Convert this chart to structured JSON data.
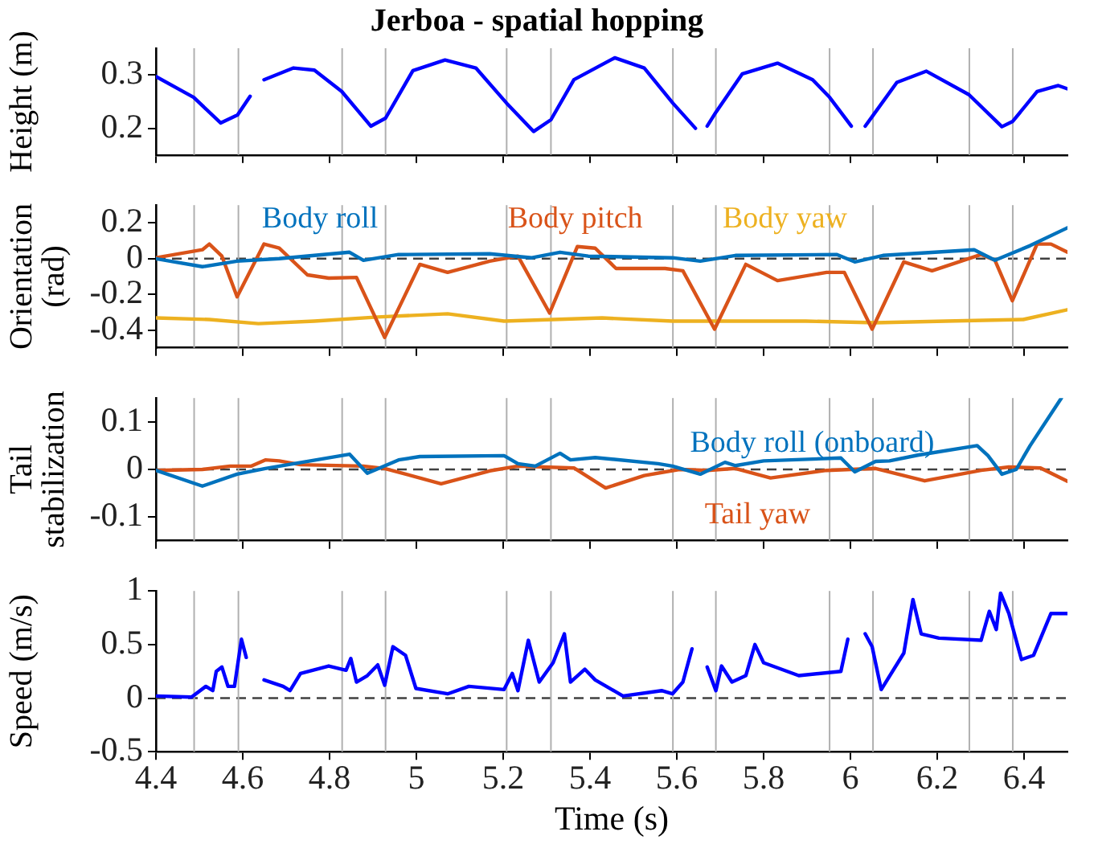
{
  "chart_data": [
    {
      "type": "line",
      "title": "Jerboa - spatial hopping",
      "ylabel": "Height (m)",
      "xlim": [
        4.4,
        6.5
      ],
      "xticks": [
        4.4,
        4.6,
        4.8,
        5,
        5.2,
        5.4,
        5.6,
        5.8,
        6,
        6.2,
        6.4
      ],
      "ylim": [
        0.15,
        0.35
      ],
      "yticks": [
        0.2,
        0.3
      ],
      "tick_labels": "y",
      "grid": false,
      "legend": false,
      "marker": "none",
      "x": [
        4.4,
        4.487,
        4.549,
        4.588,
        4.617,
        4.63,
        4.649,
        4.717,
        4.765,
        4.828,
        4.895,
        4.929,
        4.992,
        5.066,
        5.137,
        5.208,
        5.27,
        5.31,
        5.363,
        5.457,
        5.525,
        5.591,
        5.643,
        5.655,
        5.67,
        5.69,
        5.751,
        5.832,
        5.913,
        5.952,
        6.002,
        6.02,
        6.034,
        6.052,
        6.107,
        6.175,
        6.273,
        6.349,
        6.374,
        6.43,
        6.479,
        6.5
      ],
      "series": [
        {
          "color": "#0000ff",
          "values": [
            0.297,
            0.258,
            0.21,
            0.225,
            0.26,
            null,
            0.291,
            0.313,
            0.309,
            0.269,
            0.204,
            0.219,
            0.308,
            0.328,
            0.313,
            0.247,
            0.194,
            0.216,
            0.291,
            0.332,
            0.313,
            0.247,
            0.2,
            null,
            0.204,
            0.23,
            0.302,
            0.322,
            0.291,
            0.258,
            0.204,
            null,
            0.204,
            0.224,
            0.286,
            0.307,
            0.263,
            0.203,
            0.213,
            0.269,
            0.28,
            0.274
          ]
        }
      ],
      "ref_lines": [
        {
          "axis": "x",
          "value": 4.488,
          "color": "#b0b0b0"
        },
        {
          "axis": "x",
          "value": 4.59,
          "color": "#b0b0b0"
        },
        {
          "axis": "x",
          "value": 4.829,
          "color": "#b0b0b0"
        },
        {
          "axis": "x",
          "value": 4.929,
          "color": "#b0b0b0"
        },
        {
          "axis": "x",
          "value": 5.208,
          "color": "#b0b0b0"
        },
        {
          "axis": "x",
          "value": 5.31,
          "color": "#b0b0b0"
        },
        {
          "axis": "x",
          "value": 5.591,
          "color": "#b0b0b0"
        },
        {
          "axis": "x",
          "value": 5.69,
          "color": "#b0b0b0"
        },
        {
          "axis": "x",
          "value": 5.952,
          "color": "#b0b0b0"
        },
        {
          "axis": "x",
          "value": 6.052,
          "color": "#b0b0b0"
        },
        {
          "axis": "x",
          "value": 6.274,
          "color": "#b0b0b0"
        },
        {
          "axis": "x",
          "value": 6.374,
          "color": "#b0b0b0"
        }
      ]
    },
    {
      "type": "line",
      "ylabel": "Orientation (rad)",
      "xlim": [
        4.4,
        6.5
      ],
      "xticks": [
        4.4,
        4.6,
        4.8,
        5,
        5.2,
        5.4,
        5.6,
        5.8,
        6,
        6.2,
        6.4
      ],
      "ylim": [
        -0.5,
        0.3
      ],
      "yticks": [
        -0.4,
        -0.2,
        0,
        0.2
      ],
      "tick_labels": "y",
      "grid": false,
      "legend": false,
      "marker": "none",
      "series": [
        {
          "name": "Body roll",
          "color": "#0072bd",
          "x": [
            4.4,
            4.507,
            4.587,
            4.684,
            4.846,
            4.878,
            4.959,
            5.169,
            5.266,
            5.331,
            5.396,
            5.59,
            5.654,
            5.735,
            5.969,
            6.01,
            6.075,
            6.285,
            6.333,
            6.414,
            6.5
          ],
          "values": [
            0,
            -0.045,
            -0.014,
            0,
            0.036,
            -0.009,
            0.023,
            0.027,
            0.005,
            0.036,
            0.014,
            0.005,
            -0.014,
            0.018,
            0.023,
            -0.018,
            0.018,
            0.05,
            -0.009,
            0.073,
            0.173
          ]
        },
        {
          "name": "Body pitch",
          "color": "#d95319",
          "x": [
            4.4,
            4.507,
            4.523,
            4.552,
            4.587,
            4.649,
            4.684,
            4.749,
            4.798,
            4.862,
            4.927,
            5.008,
            5.072,
            5.169,
            5.234,
            5.307,
            5.371,
            5.412,
            5.46,
            5.573,
            5.614,
            5.687,
            5.759,
            5.832,
            5.945,
            5.986,
            6.05,
            6.123,
            6.188,
            6.301,
            6.333,
            6.373,
            6.43,
            6.462,
            6.5
          ],
          "values": [
            0.005,
            0.05,
            0.082,
            0.014,
            -0.214,
            0.082,
            0.059,
            -0.091,
            -0.109,
            -0.105,
            -0.441,
            -0.032,
            -0.077,
            -0.014,
            0.014,
            -0.305,
            0.068,
            0.059,
            -0.055,
            -0.055,
            -0.068,
            -0.395,
            -0.032,
            -0.123,
            -0.077,
            -0.077,
            -0.395,
            -0.018,
            -0.068,
            0.023,
            -0.009,
            -0.236,
            0.082,
            0.082,
            0.036
          ]
        },
        {
          "name": "Body yaw",
          "color": "#edb120",
          "x": [
            4.4,
            4.523,
            4.636,
            4.765,
            4.911,
            5.072,
            5.202,
            5.428,
            5.59,
            5.735,
            5.897,
            6.058,
            6.22,
            6.398,
            6.5
          ],
          "values": [
            -0.332,
            -0.341,
            -0.364,
            -0.35,
            -0.327,
            -0.309,
            -0.35,
            -0.332,
            -0.35,
            -0.35,
            -0.35,
            -0.359,
            -0.35,
            -0.341,
            -0.286
          ]
        }
      ],
      "ref_lines": [
        {
          "axis": "y",
          "value": 0,
          "color": "#404040",
          "line_style": "dashed"
        },
        {
          "axis": "x",
          "value": 4.488,
          "color": "#b0b0b0"
        },
        {
          "axis": "x",
          "value": 4.59,
          "color": "#b0b0b0"
        },
        {
          "axis": "x",
          "value": 4.829,
          "color": "#b0b0b0"
        },
        {
          "axis": "x",
          "value": 4.929,
          "color": "#b0b0b0"
        },
        {
          "axis": "x",
          "value": 5.208,
          "color": "#b0b0b0"
        },
        {
          "axis": "x",
          "value": 5.31,
          "color": "#b0b0b0"
        },
        {
          "axis": "x",
          "value": 5.591,
          "color": "#b0b0b0"
        },
        {
          "axis": "x",
          "value": 5.69,
          "color": "#b0b0b0"
        },
        {
          "axis": "x",
          "value": 5.952,
          "color": "#b0b0b0"
        },
        {
          "axis": "x",
          "value": 6.052,
          "color": "#b0b0b0"
        },
        {
          "axis": "x",
          "value": 6.274,
          "color": "#b0b0b0"
        },
        {
          "axis": "x",
          "value": 6.374,
          "color": "#b0b0b0"
        }
      ]
    },
    {
      "type": "line",
      "ylabel": "Tail stabilization",
      "xlim": [
        4.4,
        6.5
      ],
      "xticks": [
        4.4,
        4.6,
        4.8,
        5,
        5.2,
        5.4,
        5.6,
        5.8,
        6,
        6.2,
        6.4
      ],
      "ylim": [
        -0.15,
        0.15
      ],
      "yticks": [
        -0.1,
        0,
        0.1
      ],
      "tick_labels": "y",
      "grid": false,
      "legend": false,
      "marker": "none",
      "series": [
        {
          "name": "Body roll (onboard)",
          "color": "#0072bd",
          "x": [
            4.4,
            4.507,
            4.587,
            4.652,
            4.846,
            4.887,
            4.959,
            5.008,
            5.202,
            5.234,
            5.274,
            5.331,
            5.355,
            5.412,
            5.557,
            5.59,
            5.654,
            5.711,
            5.735,
            5.8,
            5.978,
            6.01,
            6.058,
            6.09,
            6.155,
            6.292,
            6.317,
            6.349,
            6.382,
            6.414,
            6.486
          ],
          "values": [
            -0.002,
            -0.035,
            -0.01,
            0.002,
            0.032,
            -0.008,
            0.02,
            0.027,
            0.029,
            0.012,
            0.007,
            0.034,
            0.02,
            0.025,
            0.012,
            0.007,
            -0.01,
            0.015,
            0.008,
            0.018,
            0.024,
            -0.005,
            0.017,
            0.018,
            0.03,
            0.05,
            0.029,
            -0.01,
            0,
            0.05,
            0.15
          ]
        },
        {
          "name": "Tail yaw",
          "color": "#d95319",
          "x": [
            4.4,
            4.507,
            4.571,
            4.62,
            4.652,
            4.684,
            4.733,
            4.878,
            4.927,
            5.057,
            5.169,
            5.234,
            5.363,
            5.436,
            5.525,
            5.606,
            5.67,
            5.735,
            5.816,
            5.945,
            6.058,
            6.171,
            6.301,
            6.365,
            6.438,
            6.5
          ],
          "values": [
            -0.002,
            0,
            0.007,
            0.007,
            0.02,
            0.018,
            0.01,
            0.007,
            0.002,
            -0.03,
            -0.003,
            0.007,
            0.003,
            -0.039,
            -0.013,
            0,
            -0.002,
            0.002,
            -0.018,
            -0.002,
            0.002,
            -0.024,
            -0.002,
            0.005,
            0.003,
            -0.025
          ]
        }
      ],
      "ref_lines": [
        {
          "axis": "y",
          "value": 0,
          "color": "#404040",
          "line_style": "dashed"
        },
        {
          "axis": "x",
          "value": 4.488,
          "color": "#b0b0b0"
        },
        {
          "axis": "x",
          "value": 4.59,
          "color": "#b0b0b0"
        },
        {
          "axis": "x",
          "value": 4.829,
          "color": "#b0b0b0"
        },
        {
          "axis": "x",
          "value": 4.929,
          "color": "#b0b0b0"
        },
        {
          "axis": "x",
          "value": 5.208,
          "color": "#b0b0b0"
        },
        {
          "axis": "x",
          "value": 5.31,
          "color": "#b0b0b0"
        },
        {
          "axis": "x",
          "value": 5.591,
          "color": "#b0b0b0"
        },
        {
          "axis": "x",
          "value": 5.69,
          "color": "#b0b0b0"
        },
        {
          "axis": "x",
          "value": 5.952,
          "color": "#b0b0b0"
        },
        {
          "axis": "x",
          "value": 6.052,
          "color": "#b0b0b0"
        },
        {
          "axis": "x",
          "value": 6.274,
          "color": "#b0b0b0"
        },
        {
          "axis": "x",
          "value": 6.374,
          "color": "#b0b0b0"
        }
      ]
    },
    {
      "type": "line",
      "xlabel": "Time (s)",
      "ylabel": "Speed (m/s)",
      "xlim": [
        4.4,
        6.5
      ],
      "xticks": [
        4.4,
        4.6,
        4.8,
        5,
        5.2,
        5.4,
        5.6,
        5.8,
        6,
        6.2,
        6.4
      ],
      "ylim": [
        -0.5,
        1
      ],
      "yticks": [
        -0.5,
        0,
        0.5,
        1
      ],
      "grid": false,
      "legend": false,
      "marker": "none",
      "x": [
        4.4,
        4.482,
        4.515,
        4.531,
        4.539,
        4.552,
        4.566,
        4.581,
        4.597,
        4.608,
        4.63,
        4.649,
        4.693,
        4.709,
        4.733,
        4.798,
        4.838,
        4.849,
        4.862,
        4.887,
        4.911,
        4.927,
        4.946,
        4.975,
        4.999,
        5.072,
        5.121,
        5.202,
        5.221,
        5.234,
        5.258,
        5.283,
        5.315,
        5.341,
        5.355,
        5.388,
        5.412,
        5.476,
        5.565,
        5.59,
        5.614,
        5.635,
        5.65,
        5.67,
        5.69,
        5.703,
        5.727,
        5.759,
        5.78,
        5.8,
        5.881,
        5.978,
        5.994,
        6.015,
        6.034,
        6.05,
        6.071,
        6.123,
        6.144,
        6.163,
        6.204,
        6.301,
        6.32,
        6.336,
        6.346,
        6.365,
        6.394,
        6.422,
        6.462,
        6.5
      ],
      "series": [
        {
          "color": "#0000ff",
          "values": [
            0.02,
            0.01,
            0.11,
            0.07,
            0.25,
            0.29,
            0.11,
            0.11,
            0.55,
            0.38,
            null,
            0.17,
            0.11,
            0.07,
            0.23,
            0.3,
            0.26,
            0.37,
            0.15,
            0.21,
            0.31,
            0.12,
            0.48,
            0.4,
            0.09,
            0.04,
            0.11,
            0.08,
            0.23,
            0.07,
            0.54,
            0.15,
            0.33,
            0.6,
            0.15,
            0.27,
            0.17,
            0.02,
            0.07,
            0.04,
            0.15,
            0.46,
            null,
            0.29,
            0.07,
            0.3,
            0.15,
            0.21,
            0.5,
            0.33,
            0.21,
            0.25,
            0.55,
            null,
            0.6,
            0.48,
            0.08,
            0.42,
            0.92,
            0.6,
            0.56,
            0.54,
            0.81,
            0.64,
            0.98,
            0.79,
            0.36,
            0.4,
            0.79,
            0.79
          ]
        }
      ],
      "ref_lines": [
        {
          "axis": "y",
          "value": 0,
          "color": "#404040",
          "line_style": "dashed"
        },
        {
          "axis": "x",
          "value": 4.488,
          "color": "#b0b0b0"
        },
        {
          "axis": "x",
          "value": 4.59,
          "color": "#b0b0b0"
        },
        {
          "axis": "x",
          "value": 4.829,
          "color": "#b0b0b0"
        },
        {
          "axis": "x",
          "value": 4.929,
          "color": "#b0b0b0"
        },
        {
          "axis": "x",
          "value": 5.208,
          "color": "#b0b0b0"
        },
        {
          "axis": "x",
          "value": 5.31,
          "color": "#b0b0b0"
        },
        {
          "axis": "x",
          "value": 5.591,
          "color": "#b0b0b0"
        },
        {
          "axis": "x",
          "value": 5.69,
          "color": "#b0b0b0"
        },
        {
          "axis": "x",
          "value": 5.952,
          "color": "#b0b0b0"
        },
        {
          "axis": "x",
          "value": 6.052,
          "color": "#b0b0b0"
        },
        {
          "axis": "x",
          "value": 6.274,
          "color": "#b0b0b0"
        },
        {
          "axis": "x",
          "value": 6.374,
          "color": "#b0b0b0"
        }
      ]
    }
  ]
}
